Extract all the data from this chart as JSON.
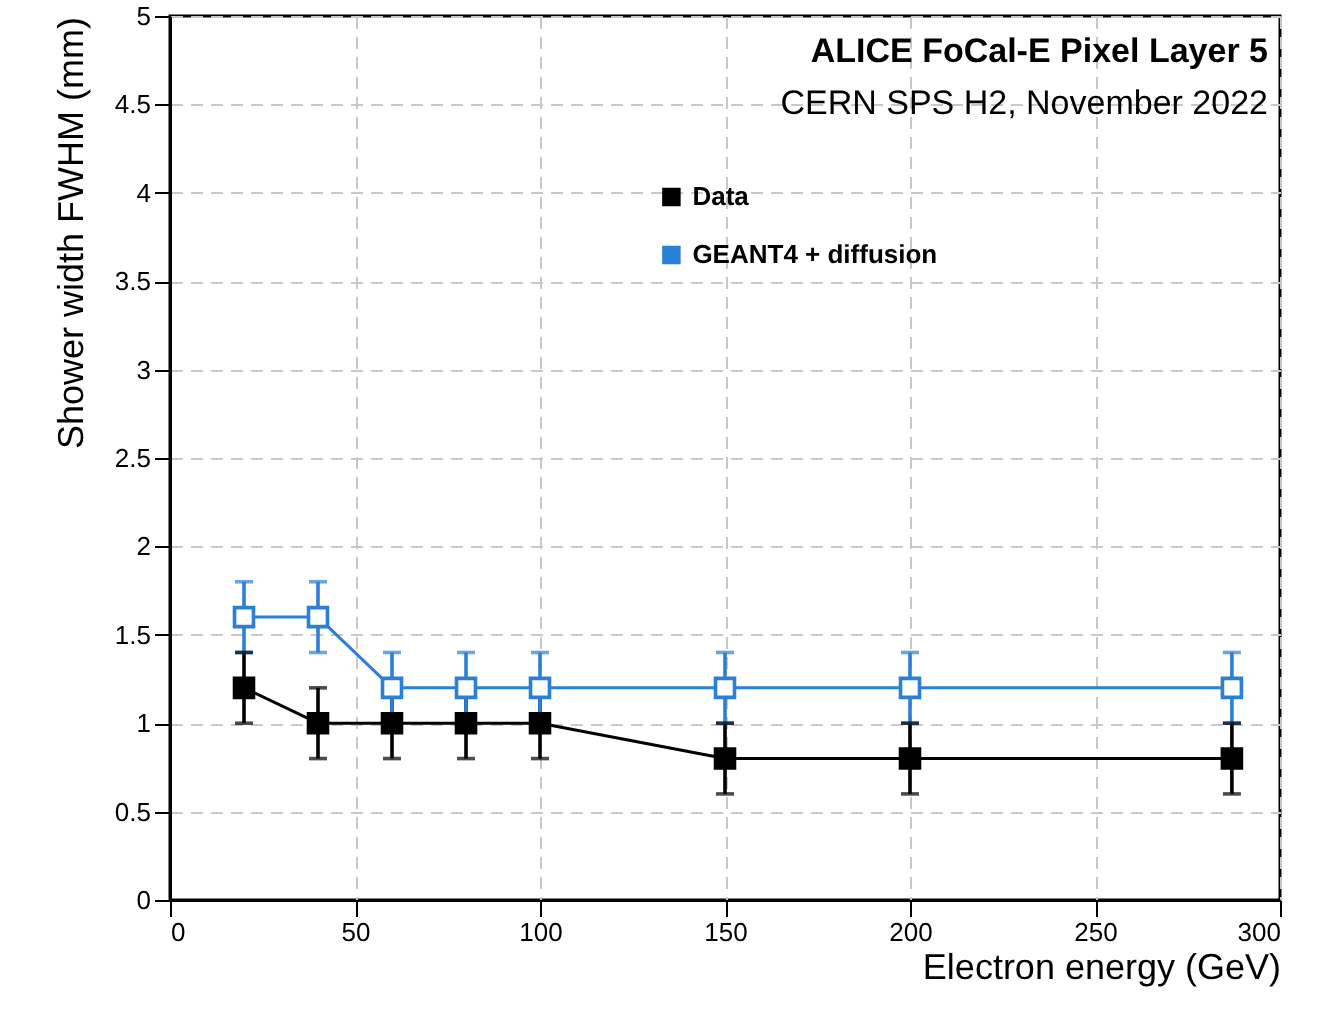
{
  "chart_data": {
    "type": "line",
    "title": "ALICE FoCal-E Pixel Layer 5",
    "subtitle": "CERN SPS H2, November 2022",
    "xlabel": "Electron energy (GeV)",
    "ylabel": "Shower width FWHM (mm)",
    "x": [
      20,
      40,
      60,
      80,
      100,
      150,
      200,
      287
    ],
    "series": [
      {
        "name": "Data",
        "color": "#000000",
        "values": [
          1.2,
          1.0,
          1.0,
          1.0,
          1.0,
          0.8,
          0.8,
          0.8
        ],
        "errors": [
          0.2,
          0.2,
          0.2,
          0.2,
          0.2,
          0.2,
          0.2,
          0.2
        ]
      },
      {
        "name": "GEANT4 + diffusion",
        "color": "#2a7fd6",
        "values": [
          1.6,
          1.6,
          1.2,
          1.2,
          1.2,
          1.2,
          1.2,
          1.2
        ],
        "errors": [
          0.2,
          0.2,
          0.2,
          0.2,
          0.2,
          0.2,
          0.2,
          0.2
        ]
      }
    ],
    "xlim": [
      0,
      300
    ],
    "xticks": [
      0,
      50,
      100,
      150,
      200,
      250,
      300
    ],
    "ylim": [
      0,
      5
    ],
    "yticks": [
      0,
      0.5,
      1,
      1.5,
      2,
      2.5,
      3,
      3.5,
      4,
      4.5,
      5
    ],
    "grid": true,
    "legend": "top right",
    "marker": "square",
    "line_style": "solid"
  }
}
